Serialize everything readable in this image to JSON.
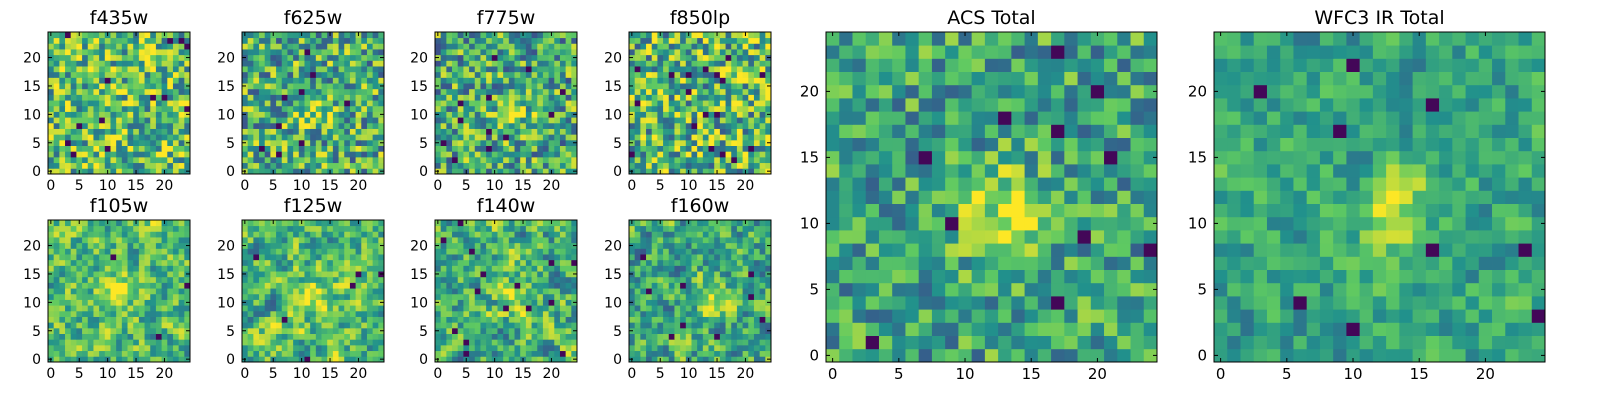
{
  "colormap": {
    "name": "viridis",
    "stops": [
      "#440154",
      "#3b528b",
      "#21918c",
      "#5ec962",
      "#fde725"
    ]
  },
  "chart_data": [
    {
      "type": "heatmap",
      "title": "f435w",
      "xticks": [
        0,
        5,
        10,
        15,
        20
      ],
      "yticks": [
        0,
        5,
        10,
        15,
        20
      ],
      "xlim": [
        0,
        24
      ],
      "ylim": [
        0,
        24
      ],
      "grid": false,
      "grid_size": 25,
      "description": "noisy pixel map, no clear central source"
    },
    {
      "type": "heatmap",
      "title": "f625w",
      "xticks": [
        0,
        5,
        10,
        15,
        20
      ],
      "yticks": [
        0,
        5,
        10,
        15,
        20
      ],
      "xlim": [
        0,
        24
      ],
      "ylim": [
        0,
        24
      ],
      "grid": false,
      "grid_size": 25,
      "peak": {
        "x": 12,
        "y": 11
      },
      "description": "noisy pixel map with faint bright source near center"
    },
    {
      "type": "heatmap",
      "title": "f775w",
      "xticks": [
        0,
        5,
        10,
        15,
        20
      ],
      "yticks": [
        0,
        5,
        10,
        15,
        20
      ],
      "xlim": [
        0,
        24
      ],
      "ylim": [
        0,
        24
      ],
      "grid": false,
      "grid_size": 25,
      "peak": {
        "x": 13,
        "y": 11
      },
      "description": "noisy pixel map with faint bright source near center"
    },
    {
      "type": "heatmap",
      "title": "f850lp",
      "xticks": [
        0,
        5,
        10,
        15,
        20
      ],
      "yticks": [
        0,
        5,
        10,
        15,
        20
      ],
      "xlim": [
        0,
        24
      ],
      "ylim": [
        0,
        24
      ],
      "grid": false,
      "grid_size": 25,
      "description": "noisy pixel map"
    },
    {
      "type": "heatmap",
      "title": "f105w",
      "xticks": [
        0,
        5,
        10,
        15,
        20
      ],
      "yticks": [
        0,
        5,
        10,
        15,
        20
      ],
      "xlim": [
        0,
        24
      ],
      "ylim": [
        0,
        24
      ],
      "grid": false,
      "grid_size": 25,
      "peak": {
        "x": 12,
        "y": 12
      },
      "description": "smooth bright central source"
    },
    {
      "type": "heatmap",
      "title": "f125w",
      "xticks": [
        0,
        5,
        10,
        15,
        20
      ],
      "yticks": [
        0,
        5,
        10,
        15,
        20
      ],
      "xlim": [
        0,
        24
      ],
      "ylim": [
        0,
        24
      ],
      "grid": false,
      "grid_size": 25,
      "peak": {
        "x": 12,
        "y": 11
      },
      "description": "smooth bright central source"
    },
    {
      "type": "heatmap",
      "title": "f140w",
      "xticks": [
        0,
        5,
        10,
        15,
        20
      ],
      "yticks": [
        0,
        5,
        10,
        15,
        20
      ],
      "xlim": [
        0,
        24
      ],
      "ylim": [
        0,
        24
      ],
      "grid": false,
      "grid_size": 25,
      "peak": {
        "x": 13,
        "y": 12
      },
      "description": "smooth central source with dark patches"
    },
    {
      "type": "heatmap",
      "title": "f160w",
      "xticks": [
        0,
        5,
        10,
        15,
        20
      ],
      "yticks": [
        0,
        5,
        10,
        15,
        20
      ],
      "xlim": [
        0,
        24
      ],
      "ylim": [
        0,
        24
      ],
      "grid": false,
      "grid_size": 25,
      "peak": {
        "x": 13,
        "y": 11
      },
      "description": "smooth central source with dark patches"
    },
    {
      "type": "heatmap",
      "title": "ACS Total",
      "xticks": [
        0,
        5,
        10,
        15,
        20
      ],
      "yticks": [
        0,
        5,
        10,
        15,
        20
      ],
      "xlim": [
        0,
        24
      ],
      "ylim": [
        0,
        24
      ],
      "grid": false,
      "grid_size": 25,
      "peak": {
        "x": 13,
        "y": 11
      },
      "description": "stacked ACS image with bright central source"
    },
    {
      "type": "heatmap",
      "title": "WFC3 IR Total",
      "xticks": [
        0,
        5,
        10,
        15,
        20
      ],
      "yticks": [
        0,
        5,
        10,
        15,
        20
      ],
      "xlim": [
        0,
        24
      ],
      "ylim": [
        0,
        24
      ],
      "grid": false,
      "grid_size": 25,
      "peak": {
        "x": 13,
        "y": 11
      },
      "description": "stacked WFC3 IR image with bright central source"
    }
  ]
}
